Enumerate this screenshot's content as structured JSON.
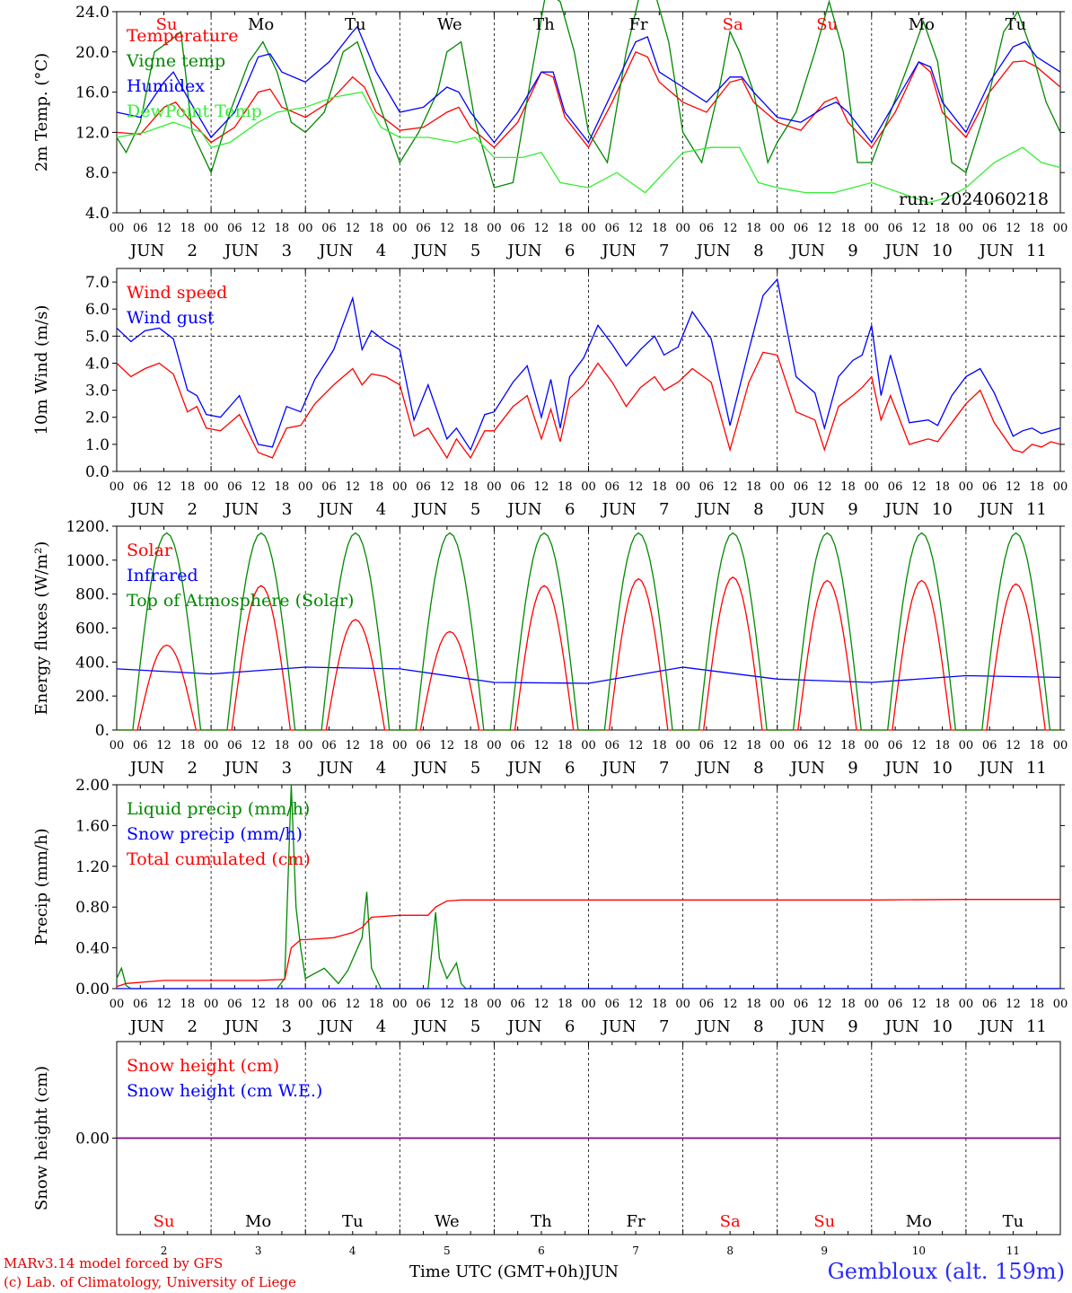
{
  "run_label": "run: 2024060218",
  "day_names": [
    "Su",
    "Mo",
    "Tu",
    "We",
    "Th",
    "Fr",
    "Sa",
    "Su",
    "Mo",
    "Tu"
  ],
  "weekend_flags": [
    true,
    false,
    false,
    false,
    false,
    false,
    true,
    true,
    false,
    false
  ],
  "day_numbers": [
    "2",
    "3",
    "4",
    "5",
    "6",
    "7",
    "8",
    "9",
    "10",
    "11"
  ],
  "month": "JUN",
  "hour_ticks": [
    "00",
    "06",
    "12",
    "18"
  ],
  "colors": {
    "red": "#ff0000",
    "green": "#008800",
    "blue": "#0000ff",
    "lightgreen": "#33ee33",
    "purple": "#880088",
    "footer_blue": "#2a2aff"
  },
  "footer": {
    "model_line": "MARv3.14 model forced by GFS",
    "lab_line": "(c) Lab. of Climatology, University of Liege",
    "x_title": "Time UTC (GMT+0h)",
    "month_label": "JUN",
    "station": "Gembloux (alt. 159m)"
  },
  "chart_data": [
    {
      "type": "line",
      "ylabel": "2m Temp. (°C)",
      "ylim": [
        4,
        24
      ],
      "yticks": [
        "4.0",
        "8.0",
        "12.0",
        "16.0",
        "20.0",
        "24.0"
      ],
      "x_unit": "days since 2024-06-02 00 UTC",
      "series": [
        {
          "name": "Temperature",
          "color": "red",
          "x": [
            0,
            0.25,
            0.5,
            0.625,
            0.75,
            1,
            1.25,
            1.5,
            1.625,
            1.75,
            2,
            2.25,
            2.5,
            2.625,
            2.75,
            3,
            3.25,
            3.5,
            3.625,
            3.75,
            4,
            4.25,
            4.5,
            4.625,
            4.75,
            5,
            5.25,
            5.5,
            5.625,
            5.75,
            6,
            6.25,
            6.5,
            6.625,
            6.75,
            7,
            7.25,
            7.5,
            7.625,
            7.75,
            8,
            8.25,
            8.5,
            8.625,
            8.75,
            9,
            9.25,
            9.5,
            9.625,
            9.75,
            10
          ],
          "y": [
            12,
            11.8,
            14.5,
            15,
            13.5,
            11,
            12.5,
            16,
            16.3,
            14.5,
            13.5,
            15,
            17.5,
            16.5,
            14,
            12.2,
            12.5,
            14,
            14.5,
            12.5,
            10.5,
            13,
            18,
            17.5,
            13.5,
            10.5,
            15,
            20,
            19.5,
            17,
            15,
            14,
            17,
            17.3,
            15,
            13,
            12.2,
            15,
            15.5,
            13,
            10.5,
            14,
            19,
            18,
            14,
            11.5,
            16,
            19,
            19.1,
            18.5,
            16.5
          ]
        },
        {
          "name": "Vigne temp",
          "color": "green",
          "x": [
            0,
            0.1,
            0.25,
            0.4,
            0.55,
            0.68,
            0.8,
            1,
            1.2,
            1.4,
            1.55,
            1.7,
            1.85,
            2,
            2.2,
            2.4,
            2.55,
            2.7,
            2.85,
            3,
            3.2,
            3.4,
            3.5,
            3.65,
            3.8,
            4,
            4.2,
            4.4,
            4.55,
            4.7,
            4.85,
            5,
            5.2,
            5.4,
            5.55,
            5.7,
            5.85,
            6,
            6.2,
            6.4,
            6.5,
            6.6,
            6.75,
            6.9,
            7,
            7.2,
            7.4,
            7.55,
            7.7,
            7.85,
            8,
            8.2,
            8.4,
            8.55,
            8.7,
            8.85,
            9,
            9.2,
            9.4,
            9.55,
            9.7,
            9.85,
            10
          ],
          "y": [
            11.5,
            10,
            13,
            20,
            21,
            22,
            12,
            8,
            14,
            19,
            21,
            18,
            13,
            12,
            14,
            20,
            21,
            17,
            13,
            9,
            12,
            16,
            20,
            21,
            13,
            6.5,
            7,
            18,
            26,
            25,
            20,
            12,
            9,
            20,
            26,
            26,
            21,
            12,
            9,
            17,
            22,
            20,
            16,
            9,
            11,
            14,
            20,
            25,
            20,
            9,
            9,
            14,
            19,
            23,
            19,
            9,
            8,
            14,
            22,
            24,
            20,
            15,
            12
          ]
        },
        {
          "name": "Humidex",
          "color": "blue",
          "x": [
            0,
            0.25,
            0.5,
            0.6,
            0.75,
            1,
            1.25,
            1.5,
            1.625,
            1.75,
            2,
            2.25,
            2.5,
            2.55,
            2.75,
            3,
            3.25,
            3.5,
            3.625,
            3.75,
            4,
            4.25,
            4.5,
            4.625,
            4.75,
            5,
            5.25,
            5.5,
            5.625,
            5.75,
            6,
            6.25,
            6.5,
            6.625,
            6.75,
            7,
            7.25,
            7.5,
            7.625,
            7.75,
            8,
            8.25,
            8.5,
            8.625,
            8.75,
            9,
            9.25,
            9.5,
            9.625,
            9.75,
            10
          ],
          "y": [
            14,
            13.5,
            17,
            18,
            15.5,
            11.5,
            14,
            19.5,
            19.8,
            18,
            17,
            19,
            22,
            22.5,
            18,
            14,
            14.5,
            16.5,
            16,
            14,
            11,
            14,
            18,
            18,
            14,
            11,
            16,
            21,
            21.5,
            18,
            16.5,
            15,
            17.5,
            17.5,
            16,
            13.5,
            13,
            14.5,
            15,
            14,
            11,
            15,
            19,
            18.5,
            15,
            12,
            17,
            20.5,
            21,
            19.5,
            18
          ]
        },
        {
          "name": "DewPoint Temp",
          "color": "lightgreen",
          "x": [
            0,
            0.3,
            0.6,
            0.9,
            1,
            1.2,
            1.5,
            1.7,
            2,
            2.3,
            2.6,
            2.8,
            3,
            3.3,
            3.6,
            3.8,
            4,
            4.3,
            4.5,
            4.7,
            5,
            5.3,
            5.6,
            5.8,
            6,
            6.3,
            6.6,
            6.8,
            7,
            7.3,
            7.6,
            7.8,
            8,
            8.3,
            8.6,
            8.8,
            9,
            9.3,
            9.6,
            9.8,
            10
          ],
          "y": [
            11.5,
            12,
            13,
            12,
            10.5,
            11,
            13,
            14,
            14.5,
            15.5,
            16,
            12.5,
            11.5,
            11.5,
            11,
            11.5,
            9.5,
            9.5,
            10,
            7,
            6.5,
            8,
            6,
            8,
            10,
            10.5,
            10.5,
            7,
            6.5,
            6,
            6,
            6.5,
            7,
            6,
            5,
            5.5,
            6.5,
            9,
            10.5,
            9,
            8.5
          ]
        }
      ]
    },
    {
      "type": "line",
      "ylabel": "10m Wind (m/s)",
      "ylim": [
        0,
        7.5
      ],
      "yticks": [
        "0.0",
        "1.0",
        "2.0",
        "3.0",
        "4.0",
        "5.0",
        "6.0",
        "7.0"
      ],
      "reference_line": 5.0,
      "series": [
        {
          "name": "Wind speed",
          "color": "red",
          "x": [
            0,
            0.15,
            0.3,
            0.45,
            0.6,
            0.75,
            0.85,
            0.95,
            1.1,
            1.3,
            1.5,
            1.65,
            1.8,
            1.95,
            2.1,
            2.3,
            2.5,
            2.6,
            2.7,
            2.85,
            3,
            3.15,
            3.3,
            3.5,
            3.6,
            3.75,
            3.9,
            4,
            4.2,
            4.35,
            4.5,
            4.6,
            4.7,
            4.8,
            4.95,
            5.1,
            5.25,
            5.4,
            5.55,
            5.7,
            5.8,
            5.95,
            6.1,
            6.3,
            6.5,
            6.7,
            6.85,
            7,
            7.2,
            7.4,
            7.5,
            7.65,
            7.8,
            7.9,
            8,
            8.1,
            8.2,
            8.4,
            8.6,
            8.7,
            8.85,
            9,
            9.15,
            9.3,
            9.5,
            9.6,
            9.7,
            9.8,
            9.9,
            10
          ],
          "y": [
            4,
            3.5,
            3.8,
            4,
            3.6,
            2.2,
            2.4,
            1.6,
            1.5,
            2.1,
            0.7,
            0.5,
            1.6,
            1.7,
            2.5,
            3.2,
            3.8,
            3.2,
            3.6,
            3.5,
            3.2,
            1.3,
            1.6,
            0.5,
            1.2,
            0.5,
            1.5,
            1.5,
            2.4,
            2.8,
            1.2,
            2.3,
            1.1,
            2.7,
            3.2,
            4.0,
            3.3,
            2.4,
            3.1,
            3.5,
            3.0,
            3.3,
            3.8,
            3.3,
            0.8,
            3.3,
            4.4,
            4.3,
            2.2,
            1.9,
            0.8,
            2.4,
            2.8,
            3.1,
            3.5,
            1.9,
            2.8,
            1.0,
            1.2,
            1.1,
            1.8,
            2.5,
            3.0,
            1.8,
            0.8,
            0.7,
            1.0,
            0.9,
            1.1,
            1.0
          ]
        },
        {
          "name": "Wind gust",
          "color": "blue",
          "x": [
            0,
            0.15,
            0.3,
            0.45,
            0.6,
            0.75,
            0.85,
            0.95,
            1.1,
            1.3,
            1.5,
            1.65,
            1.8,
            1.95,
            2.1,
            2.3,
            2.5,
            2.6,
            2.7,
            2.85,
            3,
            3.15,
            3.3,
            3.5,
            3.6,
            3.75,
            3.9,
            4,
            4.2,
            4.35,
            4.5,
            4.6,
            4.7,
            4.8,
            4.95,
            5.1,
            5.25,
            5.4,
            5.55,
            5.7,
            5.8,
            5.95,
            6.1,
            6.3,
            6.5,
            6.7,
            6.85,
            7,
            7.2,
            7.4,
            7.5,
            7.65,
            7.8,
            7.9,
            8,
            8.1,
            8.2,
            8.4,
            8.6,
            8.7,
            8.85,
            9,
            9.15,
            9.3,
            9.5,
            9.6,
            9.7,
            9.8,
            9.9,
            10
          ],
          "y": [
            5.3,
            4.8,
            5.2,
            5.3,
            4.9,
            3.0,
            2.8,
            2.1,
            2.0,
            2.8,
            1.0,
            0.9,
            2.4,
            2.2,
            3.4,
            4.5,
            6.4,
            4.5,
            5.2,
            4.8,
            4.5,
            1.9,
            3.2,
            1.2,
            1.6,
            0.8,
            2.1,
            2.2,
            3.3,
            3.9,
            2.0,
            3.4,
            1.6,
            3.5,
            4.2,
            5.4,
            4.7,
            3.9,
            4.5,
            5.0,
            4.3,
            4.6,
            5.9,
            4.9,
            1.7,
            4.5,
            6.5,
            7.1,
            3.5,
            2.9,
            1.6,
            3.5,
            4.1,
            4.3,
            5.4,
            2.8,
            4.3,
            1.8,
            1.9,
            1.7,
            2.8,
            3.5,
            3.8,
            2.9,
            1.3,
            1.5,
            1.6,
            1.4,
            1.5,
            1.6
          ]
        }
      ]
    },
    {
      "type": "line",
      "ylabel": "Energy fluxes (W/m²)",
      "ylim": [
        0,
        1200
      ],
      "yticks": [
        "0.",
        "200.",
        "400.",
        "600.",
        "800.",
        "1000.",
        "1200."
      ],
      "series": [
        {
          "name": "Solar",
          "color": "red",
          "peaks": [
            500,
            850,
            650,
            580,
            850,
            890,
            900,
            880,
            880,
            860
          ]
        },
        {
          "name": "Infrared",
          "color": "blue",
          "x": [
            0,
            1,
            2,
            3,
            4,
            5,
            6,
            7,
            8,
            9,
            10
          ],
          "y": [
            360,
            330,
            370,
            360,
            280,
            275,
            370,
            300,
            280,
            320,
            310
          ]
        },
        {
          "name": "Top of Atmosphere (Solar)",
          "color": "green",
          "peaks": [
            1160,
            1160,
            1160,
            1160,
            1160,
            1160,
            1160,
            1160,
            1160,
            1160
          ]
        }
      ]
    },
    {
      "type": "line",
      "ylabel": "Precip (mm/h)",
      "ylim": [
        0,
        2.0
      ],
      "yticks": [
        "0.00",
        "0.40",
        "0.80",
        "1.20",
        "1.60",
        "2.00"
      ],
      "series": [
        {
          "name": "Liquid precip (mm/h)",
          "color": "green",
          "x": [
            0,
            0.05,
            0.1,
            0.15,
            0.25,
            0.5,
            1,
            1.5,
            1.7,
            1.78,
            1.85,
            1.9,
            1.95,
            2,
            2.2,
            2.35,
            2.45,
            2.6,
            2.65,
            2.7,
            2.8,
            3,
            3.3,
            3.38,
            3.42,
            3.5,
            3.6,
            3.65,
            3.7,
            3.8,
            4,
            10
          ],
          "y": [
            0.1,
            0.2,
            0.03,
            0,
            0,
            0,
            0,
            0,
            0,
            0.1,
            2.0,
            0.8,
            0.4,
            0.1,
            0.2,
            0.05,
            0.18,
            0.5,
            0.95,
            0.2,
            0,
            0,
            0,
            0.75,
            0.3,
            0.1,
            0.25,
            0.05,
            0,
            0,
            0,
            0
          ]
        },
        {
          "name": "Snow precip (mm/h)",
          "color": "blue",
          "x": [
            0,
            10
          ],
          "y": [
            0,
            0
          ]
        },
        {
          "name": "Total cumulated (cm)",
          "color": "red",
          "x": [
            0,
            0.1,
            0.5,
            1,
            1.5,
            1.78,
            1.85,
            1.95,
            2,
            2.3,
            2.5,
            2.6,
            2.7,
            3,
            3.3,
            3.38,
            3.5,
            3.65,
            4,
            5,
            6,
            7,
            8,
            9,
            10
          ],
          "y": [
            0.02,
            0.05,
            0.08,
            0.08,
            0.08,
            0.09,
            0.4,
            0.48,
            0.48,
            0.5,
            0.55,
            0.6,
            0.7,
            0.72,
            0.72,
            0.8,
            0.86,
            0.87,
            0.87,
            0.87,
            0.87,
            0.87,
            0.87,
            0.875,
            0.875
          ]
        }
      ]
    },
    {
      "type": "line",
      "ylabel": "Snow height (cm)",
      "yticks": [
        "0.00"
      ],
      "series": [
        {
          "name": "Snow height (cm)",
          "color": "red",
          "x": [
            0,
            10
          ],
          "y": [
            0,
            0
          ]
        },
        {
          "name": "Snow height (cm W.E.)",
          "color": "blue",
          "x": [
            0,
            10
          ],
          "y": [
            0,
            0
          ]
        }
      ]
    }
  ]
}
